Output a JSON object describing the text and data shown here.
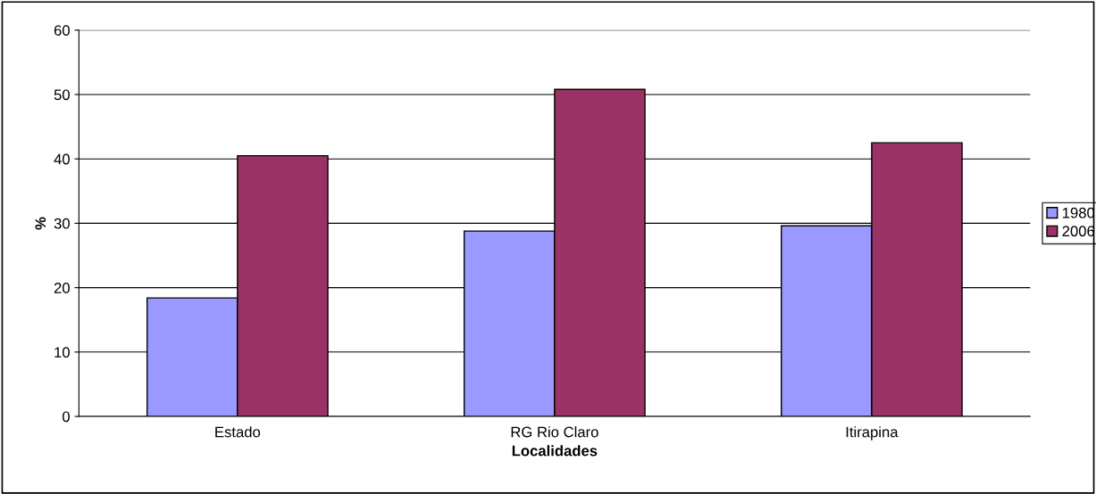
{
  "chart_data": {
    "type": "bar",
    "xlabel": "Localidades",
    "ylabel": "%",
    "categories": [
      "Estado",
      "RG Rio Claro",
      "Itirapina"
    ],
    "series": [
      {
        "name": "1980",
        "color": "#9999ff",
        "values": [
          18.4,
          28.8,
          29.6
        ]
      },
      {
        "name": "2006",
        "color": "#993366",
        "values": [
          40.5,
          50.8,
          42.5
        ]
      }
    ],
    "ylim": [
      0,
      60
    ],
    "yticks": [
      0,
      10,
      20,
      30,
      40,
      50,
      60
    ],
    "grid": "y",
    "legend": "right"
  }
}
